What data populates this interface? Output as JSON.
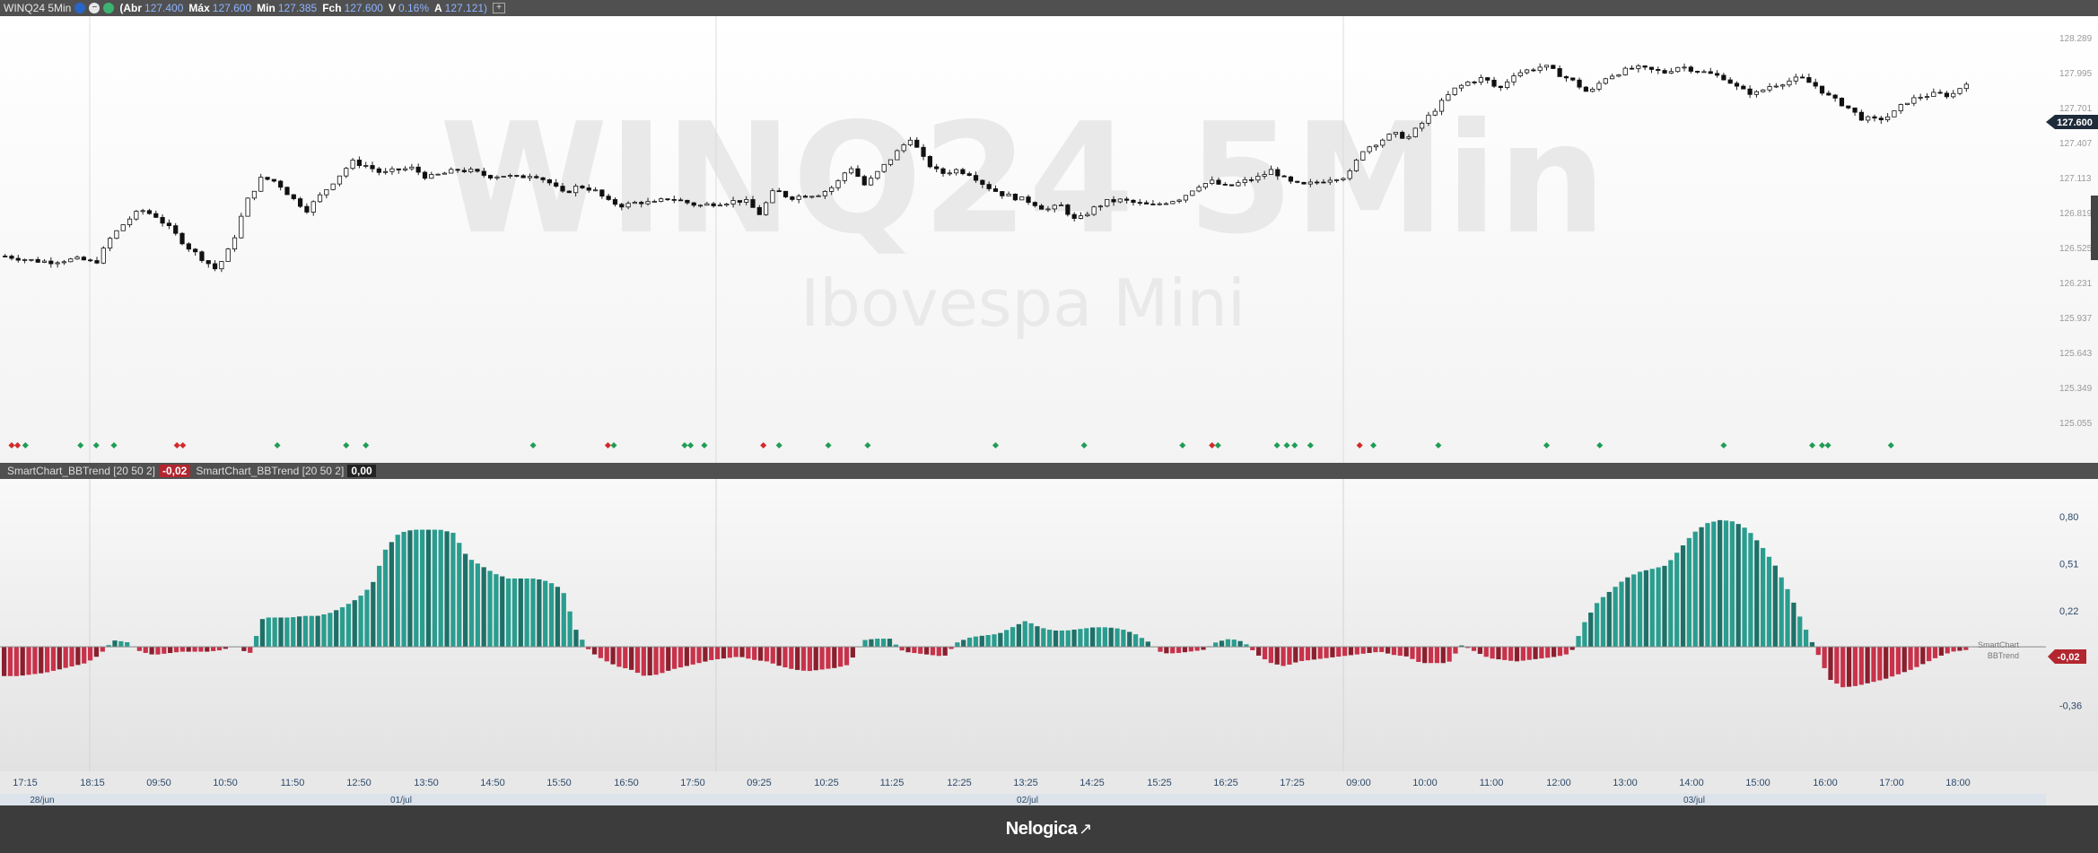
{
  "header": {
    "symbol": "WINQ24 5Min",
    "open_label": "(Abr",
    "open_value": "127.400",
    "high_label": "Máx",
    "high_value": "127.600",
    "low_label": "Min",
    "low_value": "127.385",
    "close_label": "Fch",
    "close_value": "127.600",
    "var_label": "V",
    "var_value": "0.16%",
    "avg_label": "A",
    "avg_value": "127.121)",
    "add_label": "+"
  },
  "watermark": {
    "title": "WINQ24 5Min",
    "subtitle": "Ibovespa Mini"
  },
  "price_axis": {
    "ticks": [
      "128.289",
      "127.995",
      "127.701",
      "127.407",
      "127.113",
      "126.819",
      "126.525",
      "126.231",
      "125.937",
      "125.643",
      "125.349",
      "125.055"
    ],
    "last_price": "127.600"
  },
  "indicator": {
    "label_1": "SmartChart_BBTrend [20 50 2]",
    "value_1": "-0,02",
    "label_2": "SmartChart_BBTrend [20 50 2]",
    "value_2": "0,00",
    "axis_ticks": [
      "0,80",
      "0,51",
      "0,22",
      "-0,07",
      "-0,36"
    ],
    "legend_line1": "SmartChart",
    "legend_line2": "BBTrend",
    "current_value": "-0,02"
  },
  "time_axis": {
    "labels": [
      "17:15",
      "18:15",
      "09:50",
      "10:50",
      "11:50",
      "12:50",
      "13:50",
      "14:50",
      "15:50",
      "16:50",
      "17:50",
      "09:25",
      "10:25",
      "11:25",
      "12:25",
      "13:25",
      "14:25",
      "15:25",
      "16:25",
      "17:25",
      "09:00",
      "10:00",
      "11:00",
      "12:00",
      "13:00",
      "14:00",
      "15:00",
      "16:00",
      "17:00",
      "18:00"
    ],
    "dates": [
      "28/jun",
      "01/jul",
      "02/jul",
      "03/jul"
    ]
  },
  "footer": {
    "brand": "Nelogica"
  },
  "colors": {
    "bull_green": "#2a9d8f",
    "bear_red": "#c8324a",
    "signal_green": "#1f9d55",
    "signal_red": "#d42a2a",
    "price_tag_bg": "#1e2b3a"
  },
  "chart_data": [
    {
      "type": "candlestick",
      "title": "",
      "ylim": [
        125.055,
        128.289
      ],
      "close_path": [
        125.42,
        125.39,
        125.36,
        125.35,
        125.37,
        125.38,
        125.33,
        125.65,
        125.85,
        126.0,
        125.92,
        125.75,
        125.55,
        125.4,
        125.25,
        125.55,
        126.1,
        126.4,
        126.35,
        126.15,
        126.0,
        126.2,
        126.4,
        126.6,
        126.55,
        126.45,
        126.5,
        126.52,
        126.4,
        126.45,
        126.5,
        126.48,
        126.42,
        126.43,
        126.4,
        126.45,
        126.35,
        126.2,
        126.3,
        126.25,
        126.1,
        126.05,
        126.1,
        126.08,
        126.15,
        126.1,
        126.05,
        126.08,
        126.1,
        126.12,
        125.95,
        126.25,
        126.15,
        126.18,
        126.2,
        126.3,
        126.55,
        126.3,
        126.5,
        126.7,
        126.9,
        126.6,
        126.45,
        126.5,
        126.45,
        126.3,
        126.2,
        126.15,
        126.1,
        126.0,
        126.05,
        125.85,
        126.0,
        126.1,
        126.12,
        126.08,
        126.05,
        126.1,
        126.15,
        126.3,
        126.35,
        126.28,
        126.35,
        126.4,
        126.5,
        126.35,
        126.3,
        126.35,
        126.4,
        126.42,
        126.75,
        126.85,
        126.95,
        126.9,
        127.1,
        127.3,
        127.5,
        127.6,
        127.65,
        127.5,
        127.7,
        127.75,
        127.8,
        127.7,
        127.6,
        127.45,
        127.65,
        127.72,
        127.78,
        127.75,
        127.72,
        127.8,
        127.75,
        127.7,
        127.65,
        127.5,
        127.45,
        127.55,
        127.6,
        127.65,
        127.55,
        127.4,
        127.3,
        127.15,
        127.12,
        127.18,
        127.35,
        127.42,
        127.45,
        127.43,
        127.6
      ],
      "signals": [
        {
          "x": 0.005,
          "color": "red"
        },
        {
          "x": 0.008,
          "color": "red"
        },
        {
          "x": 0.012,
          "color": "green"
        },
        {
          "x": 0.04,
          "color": "green"
        },
        {
          "x": 0.048,
          "color": "green"
        },
        {
          "x": 0.057,
          "color": "green"
        },
        {
          "x": 0.089,
          "color": "red"
        },
        {
          "x": 0.092,
          "color": "red"
        },
        {
          "x": 0.14,
          "color": "green"
        },
        {
          "x": 0.175,
          "color": "green"
        },
        {
          "x": 0.185,
          "color": "green"
        },
        {
          "x": 0.27,
          "color": "green"
        },
        {
          "x": 0.308,
          "color": "red"
        },
        {
          "x": 0.311,
          "color": "green"
        },
        {
          "x": 0.347,
          "color": "green"
        },
        {
          "x": 0.35,
          "color": "green"
        },
        {
          "x": 0.357,
          "color": "green"
        },
        {
          "x": 0.387,
          "color": "red"
        },
        {
          "x": 0.395,
          "color": "green"
        },
        {
          "x": 0.42,
          "color": "green"
        },
        {
          "x": 0.44,
          "color": "green"
        },
        {
          "x": 0.505,
          "color": "green"
        },
        {
          "x": 0.55,
          "color": "green"
        },
        {
          "x": 0.6,
          "color": "green"
        },
        {
          "x": 0.615,
          "color": "red"
        },
        {
          "x": 0.618,
          "color": "green"
        },
        {
          "x": 0.648,
          "color": "green"
        },
        {
          "x": 0.653,
          "color": "green"
        },
        {
          "x": 0.657,
          "color": "green"
        },
        {
          "x": 0.665,
          "color": "green"
        },
        {
          "x": 0.69,
          "color": "red"
        },
        {
          "x": 0.697,
          "color": "green"
        },
        {
          "x": 0.73,
          "color": "green"
        },
        {
          "x": 0.785,
          "color": "green"
        },
        {
          "x": 0.812,
          "color": "green"
        },
        {
          "x": 0.875,
          "color": "green"
        },
        {
          "x": 0.92,
          "color": "green"
        },
        {
          "x": 0.925,
          "color": "green"
        },
        {
          "x": 0.928,
          "color": "green"
        },
        {
          "x": 0.96,
          "color": "green"
        }
      ]
    },
    {
      "type": "bar",
      "title": "",
      "ylim": [
        -0.5,
        0.85
      ],
      "envelope": [
        -0.18,
        -0.18,
        -0.17,
        -0.16,
        -0.14,
        -0.12,
        -0.1,
        -0.05,
        0.04,
        0.03,
        -0.03,
        -0.05,
        -0.04,
        -0.03,
        -0.03,
        -0.03,
        -0.02,
        0.01,
        -0.05,
        0.18,
        0.18,
        0.18,
        0.19,
        0.19,
        0.21,
        0.25,
        0.3,
        0.38,
        0.6,
        0.7,
        0.72,
        0.72,
        0.72,
        0.7,
        0.55,
        0.5,
        0.45,
        0.42,
        0.42,
        0.42,
        0.4,
        0.35,
        0.1,
        -0.03,
        -0.08,
        -0.12,
        -0.14,
        -0.18,
        -0.17,
        -0.14,
        -0.12,
        -0.1,
        -0.08,
        -0.07,
        -0.06,
        -0.08,
        -0.09,
        -0.12,
        -0.14,
        -0.15,
        -0.14,
        -0.13,
        -0.11,
        0.04,
        0.05,
        0.05,
        -0.03,
        -0.04,
        -0.05,
        -0.06,
        0.03,
        0.06,
        0.07,
        0.08,
        0.12,
        0.16,
        0.12,
        0.1,
        0.1,
        0.11,
        0.12,
        0.12,
        0.11,
        0.08,
        0.03,
        -0.04,
        -0.04,
        -0.03,
        -0.02,
        0.03,
        0.05,
        0.03,
        -0.05,
        -0.1,
        -0.12,
        -0.09,
        -0.08,
        -0.07,
        -0.06,
        -0.05,
        -0.04,
        -0.03,
        -0.05,
        -0.06,
        -0.1,
        -0.1,
        -0.1,
        0.01,
        -0.03,
        -0.07,
        -0.08,
        -0.09,
        -0.08,
        -0.07,
        -0.06,
        -0.04,
        0.15,
        0.28,
        0.35,
        0.42,
        0.46,
        0.48,
        0.5,
        0.6,
        0.7,
        0.76,
        0.78,
        0.77,
        0.72,
        0.62,
        0.5,
        0.34,
        0.15,
        -0.02,
        -0.2,
        -0.25,
        -0.24,
        -0.22,
        -0.2,
        -0.17,
        -0.14,
        -0.1,
        -0.06,
        -0.03,
        -0.02
      ]
    }
  ]
}
